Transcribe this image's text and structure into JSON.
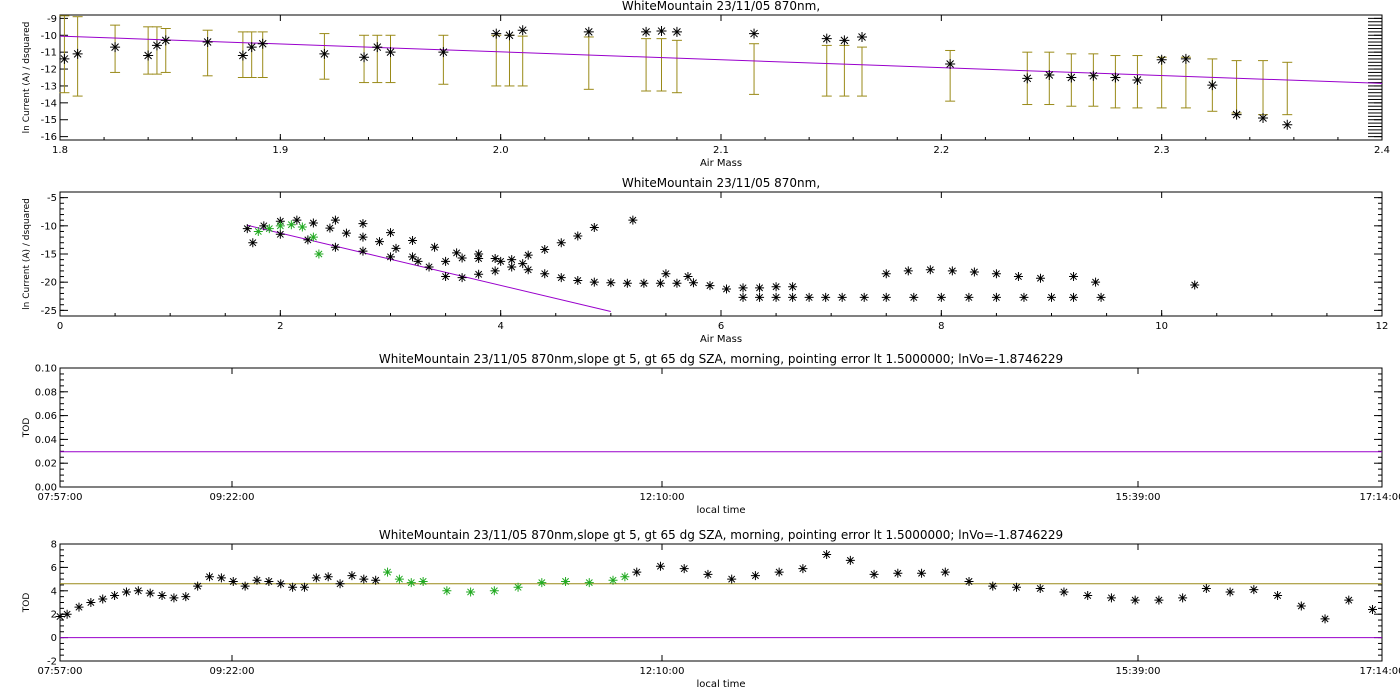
{
  "colors": {
    "axis": "#000000",
    "fit": "#9900cc",
    "errorbar": "#9a8a18",
    "highlight": "#22aa22",
    "marker": "#000000",
    "mean_line": "#9a8a18"
  },
  "chart_data": [
    {
      "type": "scatter",
      "title": "WhiteMountain 23/11/05 870nm,",
      "xlabel": "Air Mass",
      "ylabel": "ln Current (A) / dsquared",
      "xlim": [
        1.8,
        2.4
      ],
      "ylim": [
        -16.2,
        -8.8
      ],
      "xticks": [
        1.8,
        1.9,
        2.0,
        2.1,
        2.2,
        2.3,
        2.4
      ],
      "xtick_labels": [
        "1.8",
        "1.9",
        "2.0",
        "2.1",
        "2.2",
        "2.3",
        "2.4"
      ],
      "yticks": [
        -16,
        -15,
        -14,
        -13,
        -12,
        -11,
        -10,
        -9
      ],
      "ytick_labels": [
        "-16",
        "-15",
        "-14",
        "-13",
        "-12",
        "-11",
        "-10",
        "-9"
      ],
      "grid": false,
      "fit_line": {
        "x": [
          1.8,
          2.4
        ],
        "y": [
          -10.05,
          -12.85
        ]
      },
      "points": {
        "x": [
          1.802,
          1.808,
          1.825,
          1.84,
          1.844,
          1.848,
          1.867,
          1.883,
          1.887,
          1.892,
          1.92,
          1.938,
          1.944,
          1.95,
          1.974,
          1.998,
          2.004,
          2.01,
          2.04,
          2.066,
          2.073,
          2.08,
          2.115,
          2.148,
          2.156,
          2.164,
          2.204,
          2.239,
          2.249,
          2.259,
          2.269,
          2.279,
          2.289,
          2.3,
          2.311,
          2.323,
          2.334,
          2.346,
          2.357
        ],
        "y": [
          -11.4,
          -11.1,
          -10.7,
          -11.2,
          -10.6,
          -10.3,
          -10.4,
          -11.2,
          -10.7,
          -10.5,
          -11.1,
          -11.3,
          -10.7,
          -11.0,
          -11.0,
          -9.9,
          -10.0,
          -9.7,
          -9.8,
          -9.8,
          -9.75,
          -9.8,
          -9.9,
          -10.2,
          -10.3,
          -10.1,
          -11.7,
          -12.55,
          -12.35,
          -12.5,
          -12.4,
          -12.5,
          -12.65,
          -11.45,
          -11.4,
          -12.95,
          -14.7,
          -14.9,
          -15.3
        ]
      },
      "error_bars": {
        "x": [
          1.802,
          1.808,
          1.825,
          1.84,
          1.844,
          1.848,
          1.867,
          1.883,
          1.887,
          1.892,
          1.92,
          1.938,
          1.944,
          1.95,
          1.974,
          1.998,
          2.004,
          2.01,
          2.04,
          2.066,
          2.073,
          2.08,
          2.115,
          2.148,
          2.156,
          2.164,
          2.204,
          2.239,
          2.249,
          2.259,
          2.269,
          2.279,
          2.289,
          2.3,
          2.311,
          2.323,
          2.334,
          2.346,
          2.357
        ],
        "low": [
          -13.4,
          -13.6,
          -12.2,
          -12.3,
          -12.3,
          -12.2,
          -12.4,
          -12.5,
          -12.5,
          -12.5,
          -12.6,
          -12.8,
          -12.8,
          -12.8,
          -12.9,
          -13.0,
          -13.0,
          -13.0,
          -13.2,
          -13.3,
          -13.3,
          -13.4,
          -13.5,
          -13.6,
          -13.6,
          -13.6,
          -13.9,
          -14.1,
          -14.1,
          -14.2,
          -14.2,
          -14.3,
          -14.3,
          -14.3,
          -14.3,
          -14.5,
          -14.6,
          -14.7,
          -14.7
        ],
        "high": [
          -8.85,
          -8.9,
          -9.4,
          -9.5,
          -9.5,
          -9.6,
          -9.7,
          -9.8,
          -9.8,
          -9.8,
          -9.9,
          -10.0,
          -10.0,
          -10.0,
          -10.0,
          -10.0,
          -10.0,
          -10.05,
          -10.1,
          -10.2,
          -10.2,
          -10.3,
          -10.5,
          -10.6,
          -10.6,
          -10.7,
          -10.9,
          -11.0,
          -11.0,
          -11.1,
          -11.1,
          -11.2,
          -11.2,
          -11.3,
          -11.3,
          -11.4,
          -11.5,
          -11.5,
          -11.6
        ]
      }
    },
    {
      "type": "scatter",
      "title": "WhiteMountain 23/11/05 870nm,",
      "xlabel": "Air Mass",
      "ylabel": "ln Current (A) / dsquared",
      "xlim": [
        0,
        12
      ],
      "ylim": [
        -26,
        -4
      ],
      "xticks": [
        0,
        2,
        4,
        6,
        8,
        10,
        12
      ],
      "xtick_labels": [
        "0",
        "2",
        "4",
        "6",
        "8",
        "10",
        "12"
      ],
      "yticks": [
        -25,
        -20,
        -15,
        -10,
        -5
      ],
      "ytick_labels": [
        "-25",
        "-20",
        "-15",
        "-10",
        "-5"
      ],
      "grid": false,
      "fit_line": {
        "x": [
          1.7,
          5.0
        ],
        "y": [
          -9.9,
          -25.2
        ]
      },
      "series": [
        {
          "role": "branch-a",
          "x": [
            1.7,
            1.85,
            2.0,
            2.15,
            2.3,
            2.45,
            2.6,
            2.75,
            2.9,
            3.05,
            3.2,
            3.35,
            3.5,
            3.65,
            3.8,
            3.95,
            4.1,
            4.25,
            4.4,
            4.55,
            4.7,
            4.85,
            5.0,
            5.15,
            5.3,
            5.45,
            5.6,
            5.75,
            5.9,
            6.05,
            6.2,
            6.35,
            6.5,
            6.65
          ],
          "y": [
            -10.5,
            -10.0,
            -9.2,
            -9.0,
            -9.5,
            -10.4,
            -11.3,
            -12.0,
            -12.8,
            -14.0,
            -15.5,
            -17.3,
            -19.0,
            -19.2,
            -18.6,
            -18.0,
            -17.3,
            -17.8,
            -18.5,
            -19.2,
            -19.7,
            -20.0,
            -20.1,
            -20.2,
            -20.2,
            -20.2,
            -20.2,
            -20.1,
            -20.6,
            -21.2,
            -21.0,
            -21.0,
            -20.8,
            -20.8
          ]
        },
        {
          "role": "branch-b",
          "x": [
            1.75,
            2.0,
            2.25,
            2.5,
            2.75,
            3.0,
            3.25,
            3.5,
            3.65,
            3.8,
            3.95,
            4.1,
            4.25,
            4.4,
            4.55,
            4.7,
            4.85
          ],
          "y": [
            -13.0,
            -11.5,
            -12.5,
            -13.8,
            -14.5,
            -15.5,
            -16.3,
            -16.3,
            -15.7,
            -15.0,
            -15.8,
            -16.0,
            -15.2,
            -14.2,
            -13.0,
            -11.8,
            -10.3
          ]
        },
        {
          "role": "branch-c",
          "x": [
            2.5,
            2.75,
            3.0,
            3.2,
            3.4,
            3.6,
            3.8,
            4.0,
            4.2
          ],
          "y": [
            -9.0,
            -9.6,
            -11.2,
            -12.6,
            -13.8,
            -14.8,
            -15.8,
            -16.3,
            -16.7
          ]
        },
        {
          "role": "sparse-high",
          "x": [
            5.2,
            5.5,
            5.7,
            7.5,
            7.7,
            7.9,
            8.1,
            8.3,
            8.5,
            8.7,
            8.9,
            9.2,
            9.4,
            10.3
          ],
          "y": [
            -9.0,
            -18.5,
            -19.0,
            -18.5,
            -18.0,
            -17.8,
            -18.0,
            -18.2,
            -18.5,
            -19.0,
            -19.3,
            -19.0,
            -20.0,
            -20.5
          ]
        },
        {
          "role": "sparse-low",
          "x": [
            6.2,
            6.35,
            6.5,
            6.65,
            6.8,
            6.95,
            7.1,
            7.3,
            7.5,
            7.75,
            8.0,
            8.25,
            8.5,
            8.75,
            9.0,
            9.2,
            9.45
          ],
          "y": [
            -22.7,
            -22.7,
            -22.7,
            -22.7,
            -22.7,
            -22.7,
            -22.7,
            -22.7,
            -22.7,
            -22.7,
            -22.7,
            -22.7,
            -22.7,
            -22.7,
            -22.7,
            -22.7,
            -22.7
          ]
        },
        {
          "role": "highlight",
          "x": [
            1.8,
            1.9,
            2.0,
            2.1,
            2.2,
            2.3,
            2.35
          ],
          "y": [
            -11.0,
            -10.5,
            -10.0,
            -9.8,
            -10.2,
            -12.0,
            -15.0
          ]
        }
      ]
    },
    {
      "type": "line",
      "title": "WhiteMountain 23/11/05 870nm,slope gt 5, gt 65 dg SZA, morning, pointing error lt 1.5000000; lnVo=-1.8746229",
      "xlabel": "local time",
      "ylabel": "TOD",
      "xlim": [
        "07:57:00",
        "17:14:00"
      ],
      "ylim": [
        0.0,
        0.1
      ],
      "xtick_labels": [
        "07:57:00",
        "09:22:00",
        "12:10:00",
        "15:39:00",
        "17:14:00"
      ],
      "yticks": [
        0.0,
        0.02,
        0.04,
        0.06,
        0.08,
        0.1
      ],
      "ytick_labels": [
        "0.00",
        "0.02",
        "0.04",
        "0.06",
        "0.08",
        "0.10"
      ],
      "grid": false,
      "hline": 0.0296
    },
    {
      "type": "scatter",
      "title": "WhiteMountain 23/11/05 870nm,slope gt 5, gt 65 dg SZA, morning, pointing error lt 1.5000000; lnVo=-1.8746229",
      "xlabel": "local time",
      "ylabel": "TOD",
      "xlim": [
        "07:57:00",
        "17:14:00"
      ],
      "ylim": [
        -2.0,
        8.0
      ],
      "xtick_labels": [
        "07:57:00",
        "09:22:00",
        "12:10:00",
        "15:39:00",
        "17:14:00"
      ],
      "yticks": [
        -2,
        0,
        2,
        4,
        6,
        8
      ],
      "ytick_labels": [
        "-2",
        "0",
        "2",
        "4",
        "6",
        "8"
      ],
      "grid": false,
      "hlines": [
        4.6,
        0.0
      ],
      "series": [
        {
          "role": "black-a",
          "x": [
            "07:57",
            "08:00",
            "08:05",
            "08:10",
            "08:15",
            "08:20",
            "08:25",
            "08:30",
            "08:35",
            "08:40",
            "08:45",
            "08:50",
            "08:55",
            "09:00",
            "09:05",
            "09:10",
            "09:15",
            "09:20",
            "09:25",
            "09:30",
            "09:35",
            "09:40",
            "09:45",
            "09:50",
            "09:55",
            "10:00",
            "10:05",
            "10:10"
          ],
          "y": [
            1.8,
            2.0,
            2.6,
            3.0,
            3.3,
            3.6,
            3.9,
            4.0,
            3.8,
            3.6,
            3.4,
            3.5,
            4.4,
            5.2,
            5.1,
            4.8,
            4.4,
            4.9,
            4.8,
            4.6,
            4.3,
            4.3,
            5.1,
            5.2,
            4.6,
            5.3,
            5.0,
            4.9
          ]
        },
        {
          "role": "green",
          "x": [
            "10:15",
            "10:20",
            "10:25",
            "10:30",
            "10:40",
            "10:50",
            "11:00",
            "11:10",
            "11:20",
            "11:30",
            "11:40",
            "11:50",
            "11:55"
          ],
          "y": [
            5.6,
            5.0,
            4.7,
            4.8,
            4.0,
            3.9,
            4.0,
            4.3,
            4.7,
            4.8,
            4.7,
            4.9,
            5.2
          ]
        },
        {
          "role": "black-b",
          "x": [
            "12:00",
            "12:10",
            "12:20",
            "12:30",
            "12:40",
            "12:50",
            "13:00",
            "13:10",
            "13:20",
            "13:30",
            "13:40",
            "13:50",
            "14:00",
            "14:10",
            "14:20",
            "14:30",
            "14:40",
            "14:50",
            "15:00",
            "15:10",
            "15:20",
            "15:30",
            "15:40",
            "15:50",
            "16:00",
            "16:10",
            "16:20",
            "16:30",
            "16:40",
            "16:50",
            "17:00",
            "17:10"
          ],
          "y": [
            5.6,
            6.1,
            5.9,
            5.4,
            5.0,
            5.3,
            5.6,
            5.9,
            7.1,
            6.6,
            5.4,
            5.5,
            5.5,
            5.6,
            4.8,
            4.4,
            4.3,
            4.2,
            3.9,
            3.6,
            3.4,
            3.2,
            3.2,
            3.4,
            4.2,
            3.9,
            4.1,
            3.6,
            2.7,
            1.6,
            3.2,
            2.4
          ]
        }
      ]
    }
  ]
}
